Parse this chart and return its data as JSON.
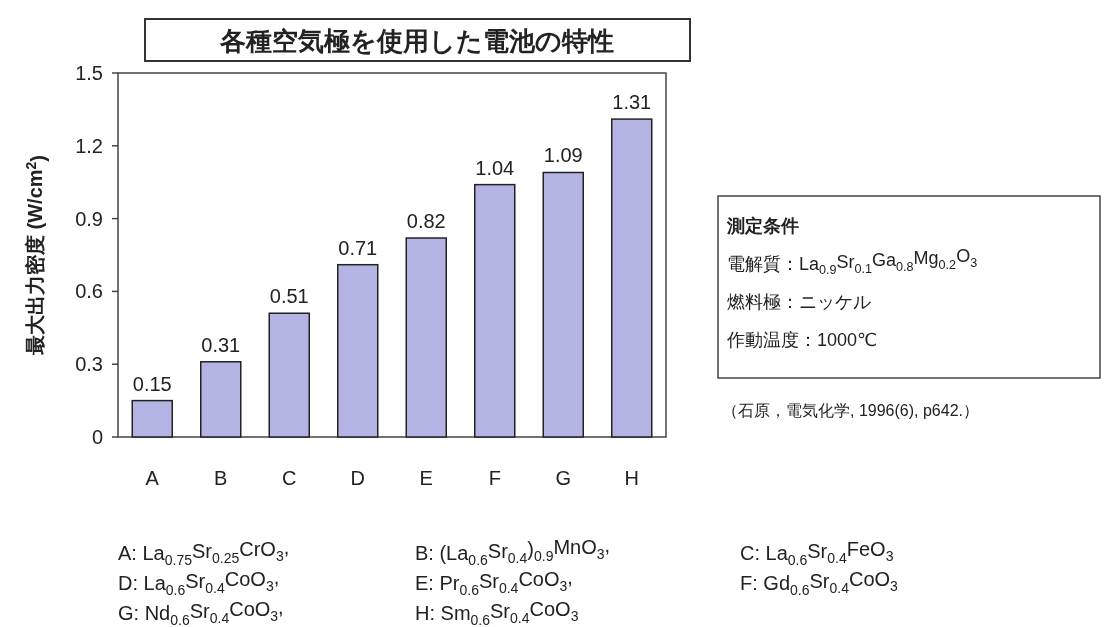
{
  "chart_data": {
    "type": "bar",
    "title": "各種空気極を使用した電池の特性",
    "ylabel": "最大出力密度 (W/cm$^{2}$)",
    "categories": [
      "A",
      "B",
      "C",
      "D",
      "E",
      "F",
      "G",
      "H"
    ],
    "values": [
      0.15,
      0.31,
      0.51,
      0.71,
      0.82,
      1.04,
      1.09,
      1.31
    ],
    "color": "#b4b4e4",
    "ylim": [
      0,
      1.5
    ],
    "yticks": [
      0,
      0.3,
      0.6,
      0.9,
      1.2,
      1.5
    ],
    "data_labels": true,
    "annotations": [
      "A: La$_{0.75}$Sr$_{0.25}$CrO$_{3}$,",
      "B: (La$_{0.6}$Sr$_{0.4}$)$_{0.9}$MnO$_{3}$,",
      "C: La$_{0.6}$Sr$_{0.4}$FeO$_{3}$",
      "D: La$_{0.6}$Sr$_{0.4}$CoO$_{3}$,",
      "E: Pr$_{0.6}$Sr$_{0.4}$CoO$_{3}$,",
      "F: Gd$_{0.6}$Sr$_{0.4}$CoO$_{3}$",
      "G: Nd$_{0.6}$Sr$_{0.4}$CoO$_{3}$,",
      "H: Sm$_{0.6}$Sr$_{0.4}$CoO$_{3}$",
      "測定条件",
      "電解質：La$_{0.9}$Sr$_{0.1}$Ga$_{0.8}$Mg$_{0.2}$O$_{3}$",
      "燃料極：ニッケル",
      "作動温度：1000℃",
      "（石原，電気化学, 1996(6), p642.）"
    ]
  }
}
